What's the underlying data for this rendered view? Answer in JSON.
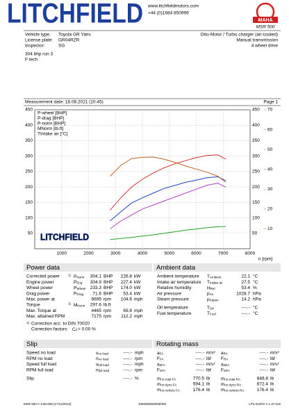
{
  "header": {
    "logo": "LITCHFIELD",
    "website": "www.litchfieldmotors.com",
    "phone": "+44 (0)1684 850999",
    "brand": "MAHA",
    "model": "MSR 500"
  },
  "vehicle": {
    "left": [
      [
        "Vehicle type:",
        "Toyota GR Yaris"
      ],
      [
        "License plate:",
        "GR04RZR"
      ],
      [
        "Inspector:",
        "SG"
      ]
    ],
    "right": [
      "Otto-Motor / Turbo charger (air-cooled)",
      "Manual transmission",
      "4 wheel drive"
    ]
  },
  "notes": [
    "304 bhp run 3",
    "F tech"
  ],
  "measurement": {
    "date": "Measurement date: 18.08.2021 (10:45)",
    "page": "Page 1"
  },
  "chart_data": {
    "type": "line",
    "watermark": "LITCHFIELD",
    "x_label": "n [rpm]",
    "x": [
      2800,
      3200,
      3600,
      4000,
      4400,
      4800,
      5200,
      5600,
      6000,
      6400,
      6800,
      7100
    ],
    "xlim": [
      0,
      8000
    ],
    "xticks": [
      1000,
      2000,
      3000,
      4000,
      5000,
      6000,
      7000,
      8000
    ],
    "ylim": [
      0,
      450
    ],
    "yticks": [
      50,
      100,
      150,
      200,
      250,
      300,
      350,
      400,
      450
    ],
    "y2lim": [
      0,
      450
    ],
    "y2ticks": [
      50,
      100,
      150,
      200,
      250,
      300,
      350,
      400,
      450
    ],
    "y2color": "#9040b0",
    "y3lim": [
      0,
      70
    ],
    "y3ticks": [
      10,
      20,
      30,
      40,
      50,
      60,
      70
    ],
    "y3color": "#d08020",
    "grid": true,
    "legend": "top-left",
    "series": [
      {
        "name": "P-wheel [BHP]",
        "color": "#2040c0",
        "values": [
          90,
          120,
          148,
          165,
          180,
          195,
          205,
          215,
          222,
          230,
          233,
          220
        ]
      },
      {
        "name": "P-drag [BHP]",
        "color": "#20a020",
        "values": [
          30,
          33,
          37,
          41,
          45,
          50,
          55,
          60,
          64,
          68,
          71,
          72
        ]
      },
      {
        "name": "P-norm [BHP]",
        "color": "#d03030",
        "values": [
          125,
          165,
          200,
          225,
          245,
          262,
          275,
          285,
          295,
          302,
          304,
          290
        ]
      },
      {
        "name": "MNorm [lb.ft]",
        "color": "#c06020",
        "axis": "y2",
        "values": [
          235,
          270,
          292,
          296,
          297,
          290,
          280,
          268,
          258,
          248,
          235,
          215
        ]
      },
      {
        "name": "TIntake air [°C]",
        "color": "#b040c0",
        "axis": "y3",
        "values": [
          10,
          14,
          17,
          20,
          22,
          24,
          26,
          28,
          30,
          32,
          33,
          31
        ]
      }
    ]
  },
  "power_data": {
    "title": "Power data",
    "rows": [
      {
        "label": "Corrected power",
        "note": "1)",
        "color": "#e03030",
        "symbol": {
          "base": "P",
          "sub": "Norm"
        },
        "value": "304.1",
        "unit": "BHP",
        "value2": "226.8",
        "unit2": "kW"
      },
      {
        "label": "Engine power",
        "color": "#e03030",
        "symbol": {
          "base": "P",
          "sub": "Eng"
        },
        "value": "304.9",
        "unit": "BHP",
        "value2": "227.4",
        "unit2": "kW"
      },
      {
        "label": "Wheel power",
        "color": "#2040c0",
        "symbol": {
          "base": "P",
          "sub": "Wheel"
        },
        "value": "233.3",
        "unit": "BHP",
        "value2": "174.0",
        "unit2": "kW"
      },
      {
        "label": "Drag power",
        "color": "#20a020",
        "symbol": {
          "base": "P",
          "sub": "Drag"
        },
        "value": "71.6",
        "unit": "BHP",
        "value2": "53.4",
        "unit2": "kW"
      },
      {
        "label": "Max. power at",
        "color": "#000000",
        "value": "6695",
        "unit": "rpm",
        "value2": "104.6",
        "unit2": "mph"
      },
      {
        "label": "Torque",
        "note": "1)",
        "color": "#9040b0",
        "symbol": {
          "base": "M",
          "sub": "Norm"
        },
        "value": "297.6",
        "unit": "lb.ft"
      },
      {
        "label": "Max. Torque at",
        "color": "#000000",
        "value": "4465",
        "unit": "rpm",
        "value2": "69.8",
        "unit2": "mph"
      },
      {
        "label": "Max. attained RPM",
        "color": "#000000",
        "value": "7175",
        "unit": "rpm",
        "value2": "112.2",
        "unit2": "mph"
      }
    ],
    "footnote": {
      "note": "1)",
      "text": "Correction acc. to DIN 70020"
    },
    "factors": {
      "text": "Correction factors:",
      "symbol": {
        "base": "C",
        "sub": "F"
      },
      "value": "= 0.00 %"
    },
    "footnote_color": "#d03030"
  },
  "ambient_data": {
    "title": "Ambient data",
    "rows": [
      {
        "label": "Ambient temperature",
        "symbol": {
          "base": "T",
          "sub": "Ambient"
        },
        "value": "22.1",
        "unit": "°C"
      },
      {
        "label": "Intake air temperature",
        "symbol": {
          "base": "T",
          "sub": "Intake air"
        },
        "value": "27.5",
        "unit": "°C"
      },
      {
        "label": "Relative humidity",
        "symbol": {
          "base": "H",
          "sub": "Rel"
        },
        "value": "53.4",
        "unit": "%"
      },
      {
        "label": "Air pressure",
        "symbol": {
          "base": "p",
          "sub": "Air"
        },
        "value": "1028.7",
        "unit": "hPa"
      },
      {
        "label": "Steam pressure",
        "symbol": {
          "base": "p",
          "sub": "Steam"
        },
        "value": "14.2",
        "unit": "hPa"
      },
      {
        "label": "Oil temperature",
        "symbol": {
          "base": "T",
          "sub": "Oil"
        },
        "value": "----.-",
        "unit": "°C"
      },
      {
        "label": "Fuel temperature",
        "symbol": {
          "base": "T",
          "sub": "Fuel"
        },
        "value": "----.-",
        "unit": "°C"
      }
    ]
  },
  "slip": {
    "title": "Slip",
    "rows": [
      {
        "label": "Speed no load",
        "symbol": {
          "base": "v",
          "sub": "no load"
        },
        "value": "----.-",
        "unit": "mph"
      },
      {
        "label": "RPM no load",
        "symbol": {
          "base": "n",
          "sub": "no load"
        },
        "value": "----.-",
        "unit": "rpm"
      },
      {
        "label": "Speed full load",
        "symbol": {
          "base": "v",
          "sub": "full load"
        },
        "value": "----.-",
        "unit": "mph"
      },
      {
        "label": "RPM full load",
        "symbol": {
          "base": "n",
          "sub": "full load"
        },
        "value": "----.-",
        "unit": "rpm"
      },
      {
        "label": "Slip",
        "value": "----.-",
        "unit": "%"
      }
    ]
  },
  "rotating_mass": {
    "title": "Rotating mass",
    "rows": [
      [
        {
          "symbol": {
            "base": "a",
            "sub": "FA"
          },
          "value": "----.-",
          "unit": "m/s²"
        },
        {
          "symbol": {
            "base": "a",
            "sub": "RA"
          },
          "value": "----.-",
          "unit": "m/s²"
        }
      ],
      [
        {
          "symbol": {
            "base": "F",
            "sub": "FA"
          },
          "value": "----.-",
          "unit": "lbf"
        },
        {
          "symbol": {
            "base": "F",
            "sub": "RA"
          },
          "value": "----.-",
          "unit": "lbf"
        }
      ],
      [
        {
          "symbol": {
            "base": "a",
            "sub": "2FA"
          },
          "value": "----.-",
          "unit": "m/s²"
        },
        {
          "symbol": {
            "base": "a",
            "sub": "2RA"
          },
          "value": "----.-",
          "unit": "m/s²"
        }
      ],
      [
        {
          "symbol": {
            "base": "F",
            "sub": "2FA"
          },
          "value": "----.-",
          "unit": "lbf"
        },
        {
          "symbol": {
            "base": "F",
            "sub": "2RA"
          },
          "value": "----.-",
          "unit": "lbf"
        }
      ],
      [
        {
          "symbol": {
            "base": "m",
            "sub": "rot total FA"
          },
          "value": "770.5",
          "unit": "lb"
        },
        {
          "symbol": {
            "base": "m",
            "sub": "rot total RA"
          },
          "value": "848.8",
          "unit": "lb"
        }
      ],
      [
        {
          "symbol": {
            "base": "m",
            "sub": "rot dyno FA"
          },
          "value": "594.1",
          "unit": "lb"
        },
        {
          "symbol": {
            "base": "m",
            "sub": "rot dyno RA"
          },
          "value": "672.4",
          "unit": "lb"
        }
      ],
      [
        {
          "symbol": {
            "base": "m",
            "sub": "rot vehicle FA"
          },
          "value": "176.4",
          "unit": "lb"
        },
        {
          "symbol": {
            "base": "m",
            "sub": "rot vehicle RA"
          },
          "value": "176.4",
          "unit": "lb"
        }
      ]
    ]
  },
  "footer": {
    "left": "MSR 500 V 3.90.008 (17/12/2013)",
    "center": "100000000/000/000",
    "right": "LPS EURO V 1.37.616"
  }
}
